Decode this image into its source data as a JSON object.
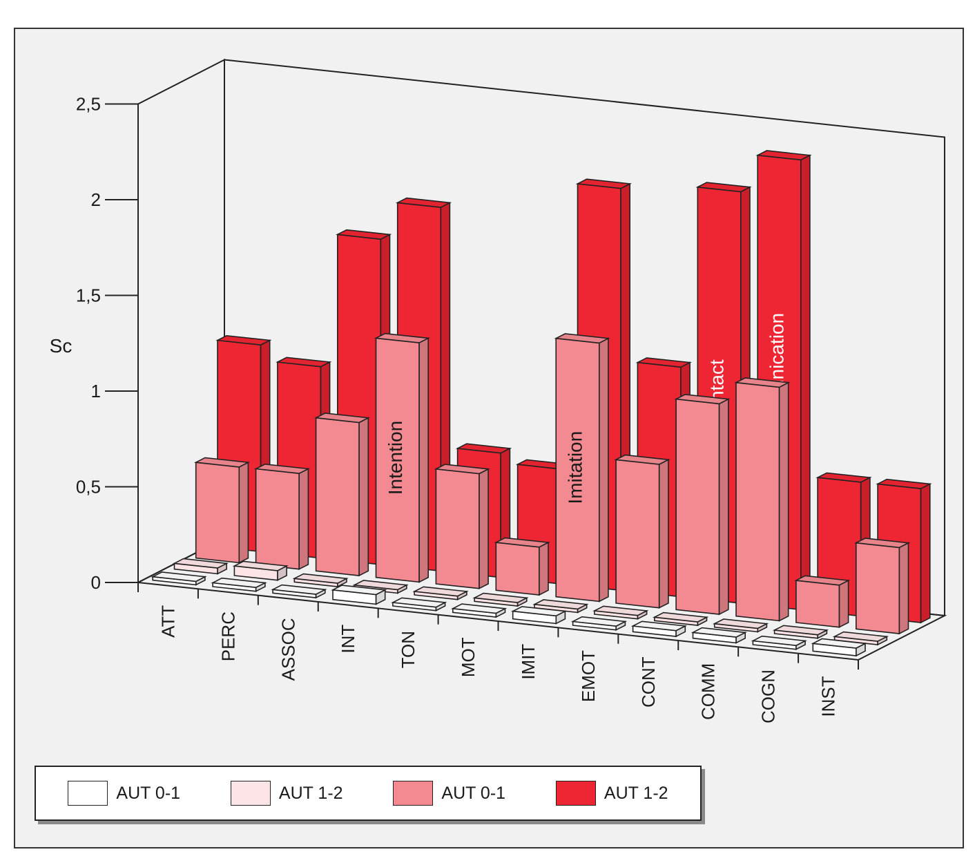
{
  "chart_data": {
    "type": "bar",
    "title": "",
    "ylabel": "Sc",
    "xlabel": "",
    "ylim": [
      0,
      2.5
    ],
    "yticks": [
      "0",
      "0,5",
      "1",
      "1,5",
      "2",
      "2,5"
    ],
    "categories": [
      "ATT",
      "PERC",
      "ASSOC",
      "INT",
      "TON",
      "MOT",
      "IMIT",
      "EMOT",
      "CONT",
      "COMM",
      "COGN",
      "INST"
    ],
    "series": [
      {
        "name": "AUT 0-1",
        "color": "#ffffff",
        "values": [
          0.0,
          0.02,
          0.0,
          0.05,
          0.0,
          0.02,
          0.04,
          0.02,
          0.03,
          0.03,
          0.02,
          0.04
        ]
      },
      {
        "name": "AUT 1-2",
        "color": "#fce4e6",
        "values": [
          0.03,
          0.05,
          0.0,
          0.0,
          0.0,
          0.0,
          0.0,
          0.0,
          0.0,
          0.0,
          0.0,
          0.0
        ]
      },
      {
        "name": "AUT 0-1",
        "color": "#f38a92",
        "values": [
          0.5,
          0.5,
          0.8,
          1.25,
          0.6,
          0.25,
          1.35,
          0.75,
          1.1,
          1.22,
          0.22,
          0.45
        ]
      },
      {
        "name": "AUT 1-2",
        "color": "#ee2532",
        "values": [
          1.08,
          1.0,
          1.7,
          1.9,
          0.65,
          0.6,
          2.1,
          1.2,
          2.15,
          2.35,
          0.7,
          0.7
        ]
      }
    ],
    "annotations": [
      {
        "text": "Intention",
        "category": "INT",
        "series": 2
      },
      {
        "text": "Imitation",
        "category": "IMIT",
        "series": 2
      },
      {
        "text": "Contact",
        "category": "CONT",
        "series": 3
      },
      {
        "text": "Communication",
        "category": "COMM",
        "series": 3
      }
    ],
    "grid": false,
    "legend": "bottom"
  }
}
